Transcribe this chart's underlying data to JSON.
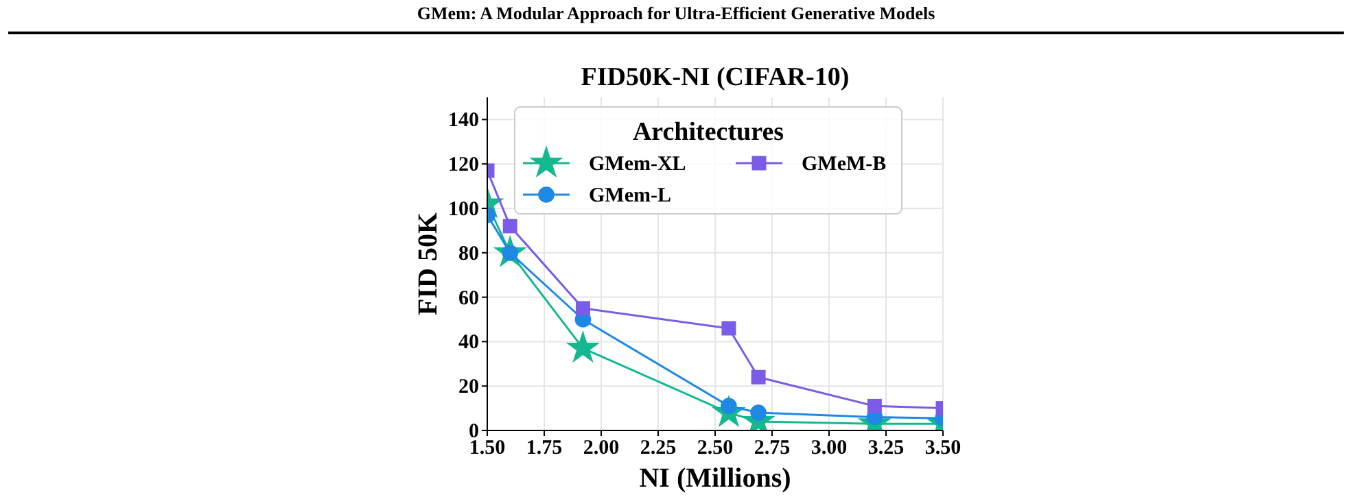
{
  "chart_data": {
    "type": "line",
    "title": "FID50K-NI (CIFAR-10)",
    "xlabel": "NI (Millions)",
    "ylabel": "FID 50K",
    "legend_title": "Architectures",
    "annotations": [
      "GMem: A Modular Approach for Ultra-Efficient Generative Models"
    ],
    "xlim": [
      1.5,
      3.5
    ],
    "xticks": [
      {
        "value": 1.5,
        "label": "1.50"
      },
      {
        "value": 1.75,
        "label": "1.75"
      },
      {
        "value": 2,
        "label": "2.00"
      },
      {
        "value": 2.25,
        "label": "2.25"
      },
      {
        "value": 2.5,
        "label": "2.50"
      },
      {
        "value": 2.75,
        "label": "2.75"
      },
      {
        "value": 3,
        "label": "3.00"
      },
      {
        "value": 3.25,
        "label": "3.25"
      },
      {
        "value": 3.5,
        "label": "3.50"
      }
    ],
    "ylim": [
      0,
      150
    ],
    "yticks": [
      0,
      20,
      40,
      60,
      80,
      100,
      120,
      140
    ],
    "grid": true,
    "legend": "top",
    "line_style": "solid",
    "series": [
      {
        "name": "GMem-XL",
        "color": "#14b890",
        "marker": "star",
        "x": [
          1.5,
          1.6,
          1.92,
          2.56,
          2.69,
          3.2,
          3.5
        ],
        "values": [
          102,
          80,
          37,
          8,
          4,
          3,
          3
        ]
      },
      {
        "name": "GMem-L",
        "color": "#1e88e5",
        "marker": "circle",
        "x": [
          1.5,
          1.6,
          1.92,
          2.56,
          2.69,
          3.2,
          3.5
        ],
        "values": [
          97,
          80,
          50,
          11,
          8,
          6,
          5.5
        ]
      },
      {
        "name": "GMeM-B",
        "color": "#7b5ce8",
        "marker": "square",
        "x": [
          1.5,
          1.6,
          1.92,
          2.56,
          2.69,
          3.2,
          3.5
        ],
        "values": [
          117,
          92,
          55,
          46,
          24,
          11,
          10
        ]
      }
    ]
  }
}
